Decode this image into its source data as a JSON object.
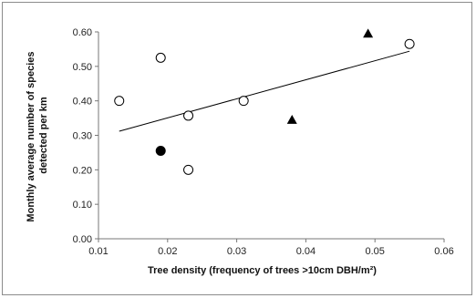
{
  "chart_data": {
    "type": "scatter",
    "xlabel": "Tree density (frequency of trees >10cm DBH/m²)",
    "ylabel_line1": "Monthly average number of species",
    "ylabel_line2": "detected per km",
    "xlim": [
      0.01,
      0.06
    ],
    "ylim": [
      0.0,
      0.6
    ],
    "x_ticks": [
      0.01,
      0.02,
      0.03,
      0.04,
      0.05,
      0.06
    ],
    "x_tick_labels": [
      "0.01",
      "0.02",
      "0.03",
      "0.04",
      "0.05",
      "0.06"
    ],
    "y_ticks": [
      0.0,
      0.1,
      0.2,
      0.3,
      0.4,
      0.5,
      0.6
    ],
    "y_tick_labels": [
      "0.00",
      "0.10",
      "0.20",
      "0.30",
      "0.40",
      "0.50",
      "0.60"
    ],
    "grid": false,
    "legend": "none",
    "series": [
      {
        "marker": "open-circle",
        "points": [
          {
            "x": 0.013,
            "y": 0.4
          },
          {
            "x": 0.019,
            "y": 0.525
          },
          {
            "x": 0.023,
            "y": 0.357
          },
          {
            "x": 0.023,
            "y": 0.2
          },
          {
            "x": 0.031,
            "y": 0.4
          },
          {
            "x": 0.055,
            "y": 0.565
          }
        ]
      },
      {
        "marker": "filled-circle",
        "points": [
          {
            "x": 0.019,
            "y": 0.255
          }
        ]
      },
      {
        "marker": "filled-triangle",
        "points": [
          {
            "x": 0.038,
            "y": 0.345
          },
          {
            "x": 0.049,
            "y": 0.595
          }
        ]
      }
    ],
    "trendline": {
      "x": [
        0.013,
        0.055
      ],
      "y": [
        0.312,
        0.544
      ]
    }
  }
}
